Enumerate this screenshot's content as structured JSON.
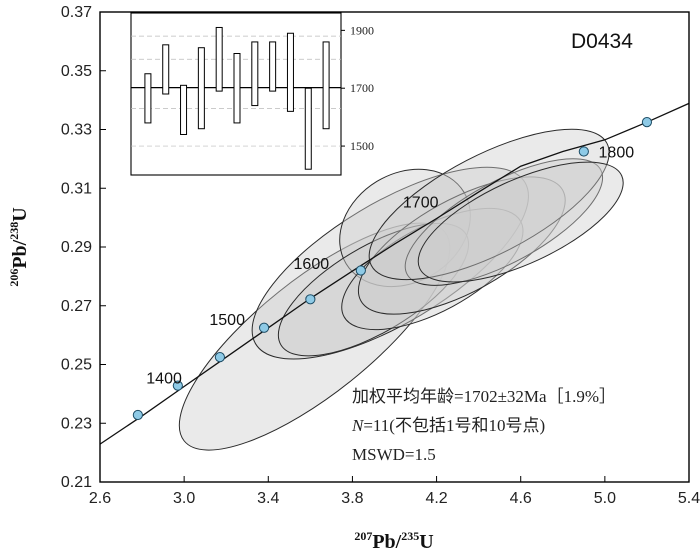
{
  "chart_data": {
    "type": "scatter",
    "sample_id": "D0434",
    "xlabel": {
      "sup": "207",
      "main": "Pb/",
      "sup2": "235",
      "main2": "U"
    },
    "ylabel": {
      "sup": "206",
      "main": "Pb/",
      "sup2": "238",
      "main2": "U"
    },
    "xlim": [
      2.6,
      5.4
    ],
    "ylim": [
      0.21,
      0.37
    ],
    "x_ticks": [
      {
        "value": 2.6,
        "label": "2.6"
      },
      {
        "value": 3.0,
        "label": "3.0"
      },
      {
        "value": 3.4,
        "label": "3.4"
      },
      {
        "value": 3.8,
        "label": "3.8"
      },
      {
        "value": 4.2,
        "label": "4.2"
      },
      {
        "value": 4.6,
        "label": "4.6"
      },
      {
        "value": 5.0,
        "label": "5.0"
      },
      {
        "value": 5.4,
        "label": "5.4"
      }
    ],
    "y_ticks": [
      {
        "value": 0.21,
        "label": "0.21"
      },
      {
        "value": 0.23,
        "label": "0.23"
      },
      {
        "value": 0.25,
        "label": "0.25"
      },
      {
        "value": 0.27,
        "label": "0.27"
      },
      {
        "value": 0.29,
        "label": "0.29"
      },
      {
        "value": 0.31,
        "label": "0.31"
      },
      {
        "value": 0.33,
        "label": "0.33"
      },
      {
        "value": 0.35,
        "label": "0.35"
      },
      {
        "value": 0.37,
        "label": "0.37"
      }
    ],
    "concordia_curve": [
      [
        2.55,
        0.2205
      ],
      [
        2.8,
        0.2325
      ],
      [
        3.0,
        0.2425
      ],
      [
        3.2,
        0.2525
      ],
      [
        3.4,
        0.2625
      ],
      [
        3.6,
        0.2725
      ],
      [
        3.8,
        0.2818
      ],
      [
        4.0,
        0.291
      ],
      [
        4.2,
        0.2997
      ],
      [
        4.4,
        0.3087
      ],
      [
        4.6,
        0.3175
      ],
      [
        4.8,
        0.3225
      ],
      [
        5.0,
        0.3265
      ],
      [
        5.2,
        0.3325
      ],
      [
        5.45,
        0.3405
      ]
    ],
    "concordia_points": [
      {
        "x": 2.78,
        "y": 0.2328
      },
      {
        "x": 2.97,
        "y": 0.2428
      },
      {
        "x": 3.17,
        "y": 0.2525
      },
      {
        "x": 3.38,
        "y": 0.2625
      },
      {
        "x": 3.6,
        "y": 0.2722
      },
      {
        "x": 3.84,
        "y": 0.282
      },
      {
        "x": 4.9,
        "y": 0.3225
      },
      {
        "x": 5.2,
        "y": 0.3325
      }
    ],
    "age_labels": [
      {
        "text": "1400",
        "x": 2.82,
        "y": 0.2435
      },
      {
        "text": "1500",
        "x": 3.12,
        "y": 0.2635
      },
      {
        "text": "1600",
        "x": 3.52,
        "y": 0.2825
      },
      {
        "text": "1700",
        "x": 4.04,
        "y": 0.3035
      },
      {
        "text": "1800",
        "x": 4.97,
        "y": 0.3205
      }
    ],
    "ellipses": [
      {
        "cx": 3.62,
        "cy": 0.2595,
        "rx_x": 0.62,
        "rx_y": 0.0355,
        "ry": 0.0195
      },
      {
        "cx": 3.98,
        "cy": 0.2845,
        "rx_x": 0.64,
        "rx_y": 0.0275,
        "ry": 0.0205
      },
      {
        "cx": 4.05,
        "cy": 0.2965,
        "rx_x": 0.28,
        "rx_y": 0.0122,
        "ry": 0.0185
      },
      {
        "cx": 3.9,
        "cy": 0.2755,
        "rx_x": 0.44,
        "rx_y": 0.0188,
        "ry": 0.0145
      },
      {
        "cx": 4.18,
        "cy": 0.2825,
        "rx_x": 0.42,
        "rx_y": 0.0162,
        "ry": 0.0145
      },
      {
        "cx": 4.32,
        "cy": 0.2905,
        "rx_x": 0.48,
        "rx_y": 0.0188,
        "ry": 0.0158
      },
      {
        "cx": 4.52,
        "cy": 0.2985,
        "rx_x": 0.46,
        "rx_y": 0.0178,
        "ry": 0.0138
      },
      {
        "cx": 4.45,
        "cy": 0.3045,
        "rx_x": 0.56,
        "rx_y": 0.0208,
        "ry": 0.0168
      },
      {
        "cx": 4.6,
        "cy": 0.2985,
        "rx_x": 0.48,
        "rx_y": 0.0158,
        "ry": 0.0142
      }
    ],
    "annotations": [
      "加权平均年龄=1702±32Ma［1.9%］",
      {
        "italic": "N",
        "rest": "=11(不包括1号和10号点)"
      },
      "MSWD=1.5"
    ],
    "inset": {
      "type": "bar",
      "ylim": [
        1400,
        1960
      ],
      "mean": 1702,
      "y_ticks": [
        {
          "value": 1900,
          "label": "1900"
        },
        {
          "value": 1700,
          "label": "1700"
        },
        {
          "value": 1500,
          "label": "1500"
        }
      ],
      "gridlines": [
        1880,
        1800,
        1630,
        1500
      ],
      "bars": [
        {
          "low": 1580,
          "high": 1750
        },
        {
          "low": 1680,
          "high": 1850
        },
        {
          "low": 1540,
          "high": 1710
        },
        {
          "low": 1560,
          "high": 1840
        },
        {
          "low": 1690,
          "high": 1910
        },
        {
          "low": 1580,
          "high": 1820
        },
        {
          "low": 1640,
          "high": 1860
        },
        {
          "low": 1690,
          "high": 1860
        },
        {
          "low": 1620,
          "high": 1890
        },
        {
          "low": 1420,
          "high": 1700
        },
        {
          "low": 1560,
          "high": 1860
        }
      ]
    }
  }
}
